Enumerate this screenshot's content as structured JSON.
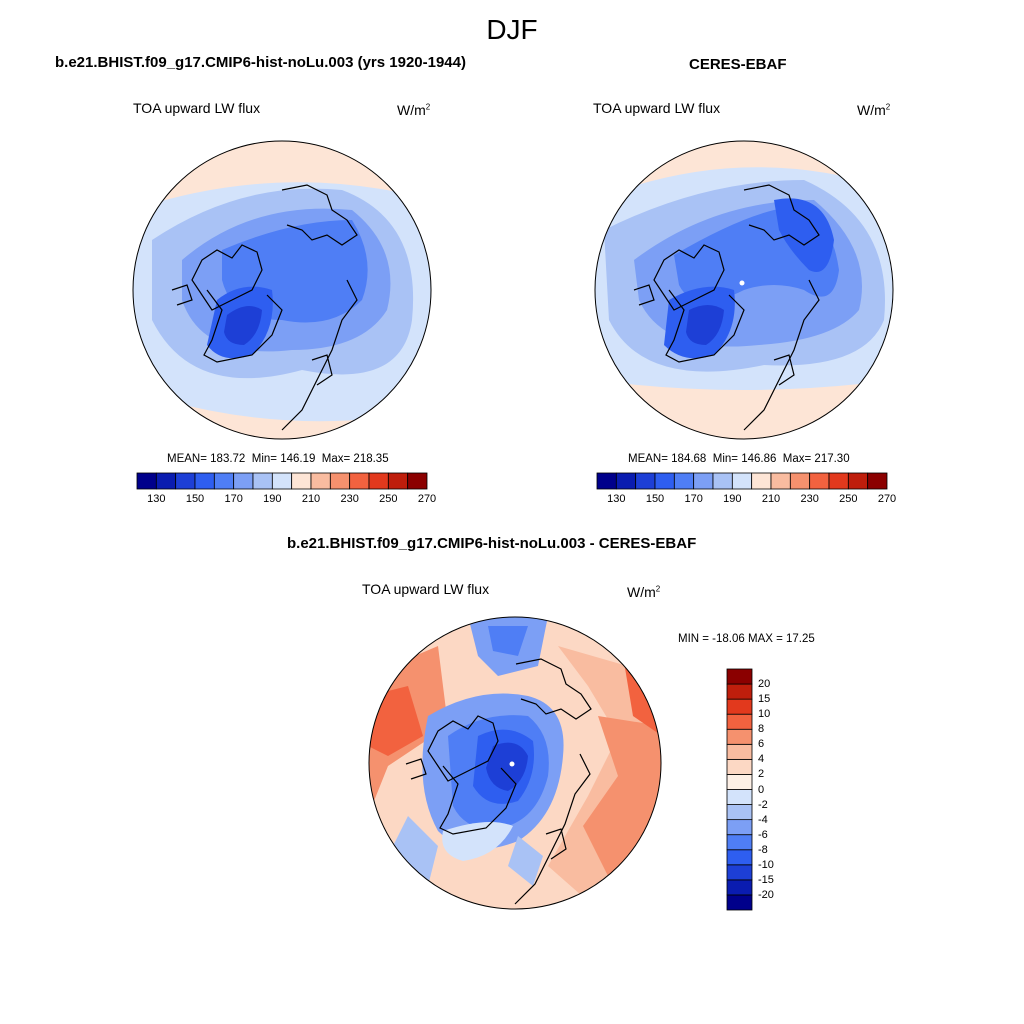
{
  "page": {
    "title": "DJF"
  },
  "panels": {
    "model": {
      "title": "b.e21.BHIST.f09_g17.CMIP6-hist-noLu.003 (yrs 1920-1944)",
      "variable": "TOA upward LW flux",
      "units_base": "W/m",
      "units_exp": "2",
      "mean_label": "MEAN=",
      "mean": "183.72",
      "min_label": "Min=",
      "min": "146.19",
      "max_label": "Max=",
      "max": "218.35"
    },
    "obs": {
      "title": "CERES-EBAF",
      "variable": "TOA upward LW flux",
      "units_base": "W/m",
      "units_exp": "2",
      "mean_label": "MEAN=",
      "mean": "184.68",
      "min_label": "Min=",
      "min": "146.86",
      "max_label": "Max=",
      "max": "217.30"
    },
    "diff": {
      "title": "b.e21.BHIST.f09_g17.CMIP6-hist-noLu.003 - CERES-EBAF",
      "variable": "TOA upward LW flux",
      "units_base": "W/m",
      "units_exp": "2",
      "minmax": "MIN = -18.06 MAX =  17.25"
    }
  },
  "colorbars": {
    "abs": {
      "colors": [
        "#00008b",
        "#0a1cb0",
        "#1d3fd6",
        "#2e5ef0",
        "#4f7ef5",
        "#7c9ff5",
        "#a9c2f5",
        "#d3e3fb",
        "#fde5d6",
        "#f9bca0",
        "#f5916e",
        "#f2623f",
        "#e2391d",
        "#bf1e0c",
        "#8b0000"
      ],
      "tick_labels": [
        "130",
        "150",
        "170",
        "190",
        "210",
        "230",
        "250",
        "270"
      ]
    },
    "diff": {
      "colors": [
        "#00008b",
        "#0a1cb0",
        "#1d3fd6",
        "#2e5ef0",
        "#4f7ef5",
        "#7c9ff5",
        "#a9c2f5",
        "#d3e3fb",
        "#fdf0e6",
        "#fcd8c4",
        "#f9bca0",
        "#f5916e",
        "#f2623f",
        "#e2391d",
        "#bf1e0c",
        "#8b0000"
      ],
      "tick_labels": [
        "20",
        "15",
        "10",
        "8",
        "6",
        "4",
        "2",
        "0",
        "-2",
        "-4",
        "-6",
        "-8",
        "-10",
        "-15",
        "-20"
      ]
    }
  }
}
